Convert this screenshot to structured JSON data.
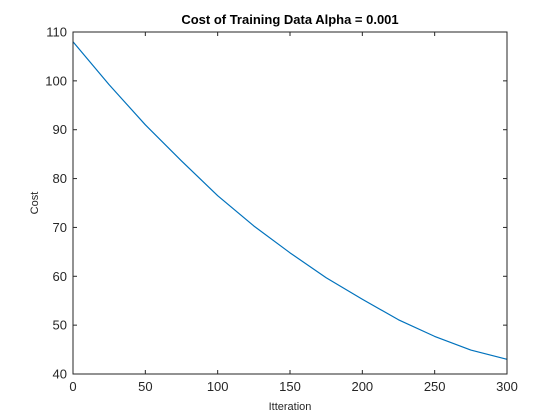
{
  "chart_data": {
    "type": "line",
    "title": "Cost of Training Data Alpha = 0.001",
    "xlabel": "Itteration",
    "ylabel": "Cost",
    "xlim": [
      0,
      300
    ],
    "ylim": [
      40,
      110
    ],
    "xticks": [
      0,
      50,
      100,
      150,
      200,
      250,
      300
    ],
    "yticks": [
      40,
      50,
      60,
      70,
      80,
      90,
      100,
      110
    ],
    "grid": false,
    "series": [
      {
        "color": "#0072bd",
        "x": [
          0,
          25,
          50,
          75,
          100,
          125,
          150,
          175,
          200,
          225,
          250,
          275,
          300
        ],
        "y": [
          108,
          99.2,
          91.0,
          83.6,
          76.5,
          70.3,
          64.8,
          59.7,
          55.3,
          51.1,
          47.7,
          44.9,
          43.0
        ]
      }
    ]
  }
}
